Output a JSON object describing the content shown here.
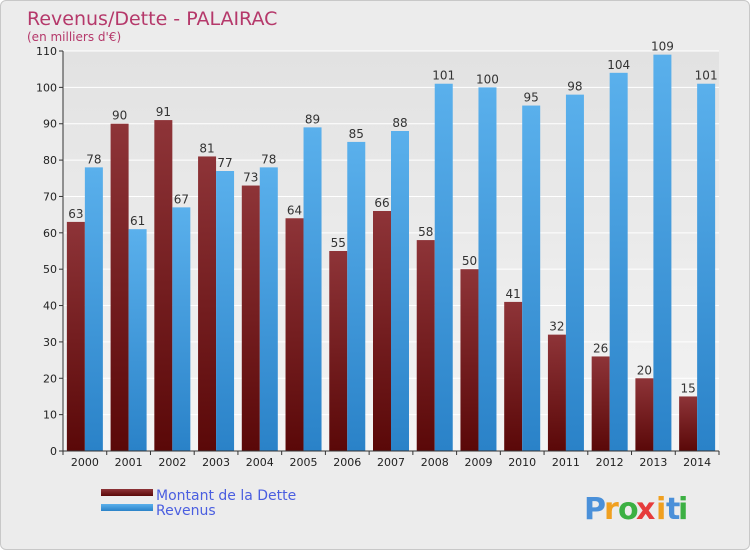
{
  "chart_data": {
    "type": "bar",
    "title": "Revenus/Dette - PALAIRAC",
    "subtitle": "(en milliers d'€)",
    "categories": [
      "2000",
      "2001",
      "2002",
      "2003",
      "2004",
      "2005",
      "2006",
      "2007",
      "2008",
      "2009",
      "2010",
      "2011",
      "2012",
      "2013",
      "2014"
    ],
    "series": [
      {
        "name": "Montant de la Dette",
        "color": "#7a1e22",
        "values": [
          63,
          90,
          91,
          81,
          73,
          64,
          55,
          66,
          58,
          50,
          41,
          32,
          26,
          20,
          15
        ]
      },
      {
        "name": "Revenus",
        "color": "#3d9ce0",
        "values": [
          78,
          61,
          67,
          77,
          78,
          89,
          85,
          88,
          101,
          100,
          95,
          98,
          104,
          109,
          101
        ]
      }
    ],
    "ylim": [
      0,
      110
    ],
    "yticks": [
      0,
      10,
      20,
      30,
      40,
      50,
      60,
      70,
      80,
      90,
      100,
      110
    ],
    "grid": true,
    "legend_position": "bottom-left"
  },
  "brand": {
    "letters": [
      "P",
      "r",
      "o",
      "x",
      "i",
      "t",
      "i"
    ],
    "colors": [
      "#4a90d9",
      "#f0a020",
      "#3cb043",
      "#e63c3c",
      "#f0a020",
      "#4a90d9",
      "#3cb043"
    ]
  }
}
